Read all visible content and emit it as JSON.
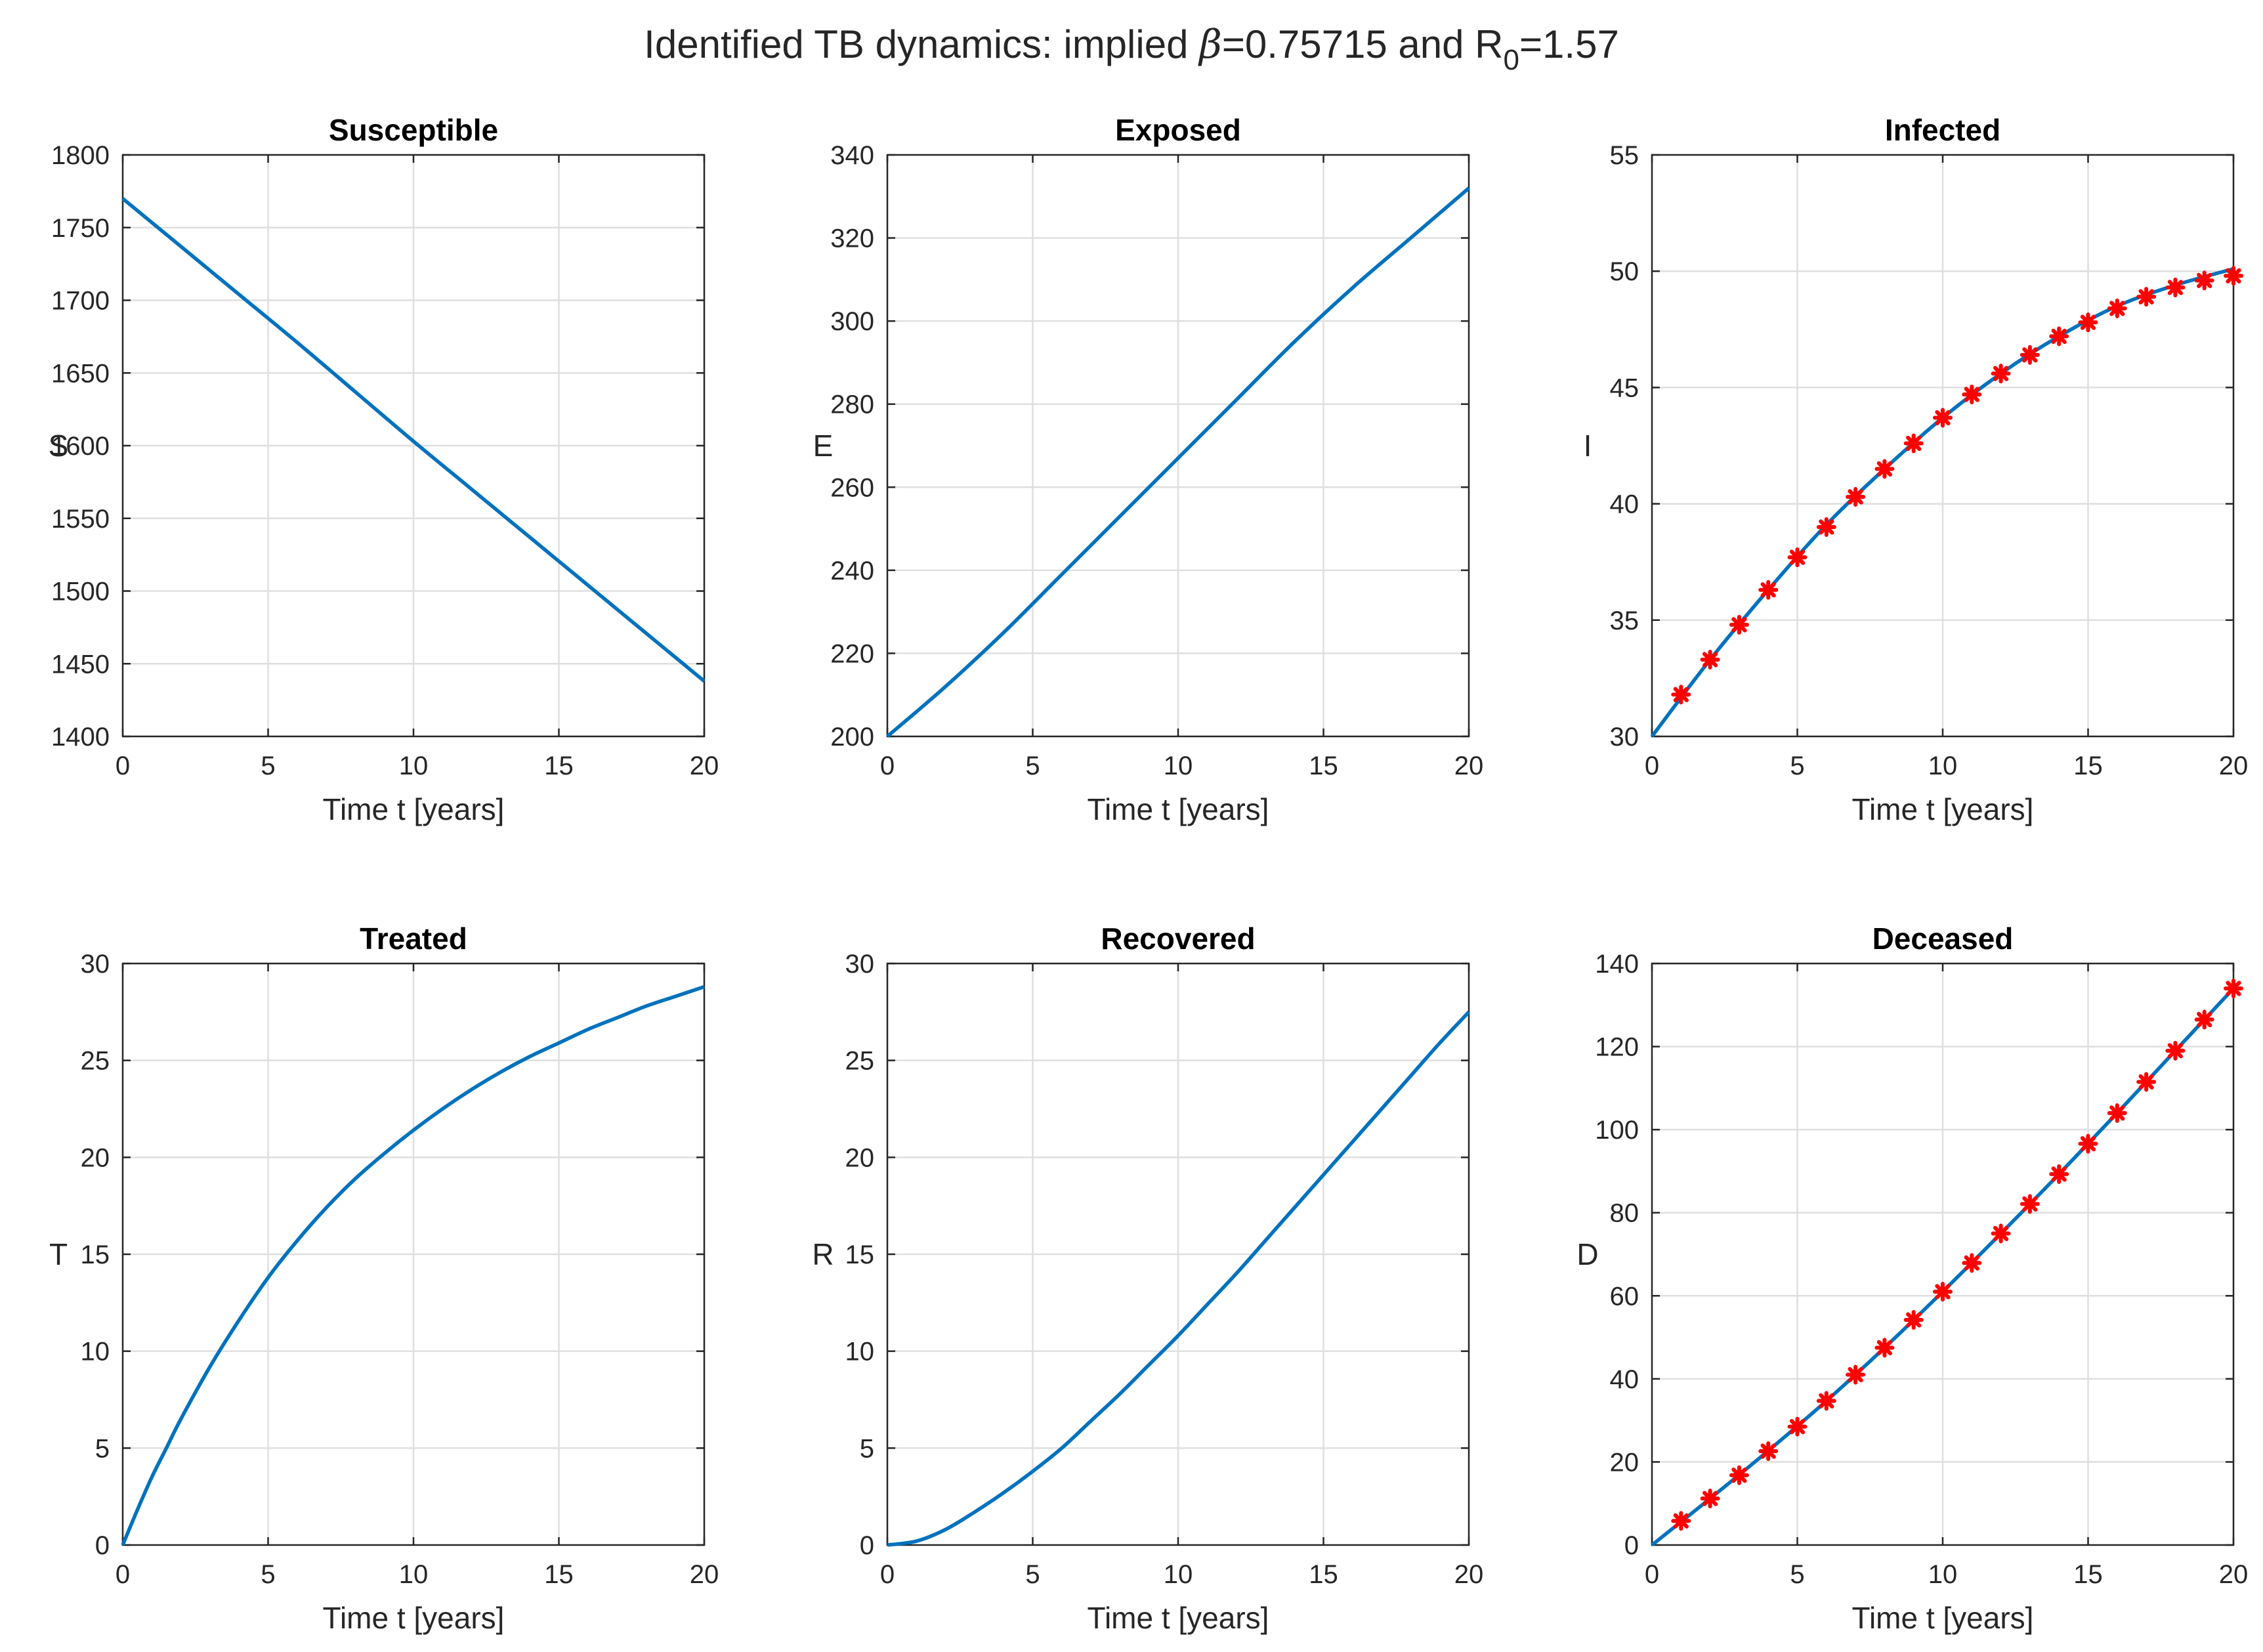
{
  "figure": {
    "title_prefix": "Identified TB dynamics: implied ",
    "beta_symbol": "β",
    "beta_value": "=0.75715 and R",
    "r0_subscript": "0",
    "r0_value": "=1.57"
  },
  "colors": {
    "line": "#0072bd",
    "marker": "#ff0000",
    "grid": "#dfdfdf",
    "axis": "#262626"
  },
  "chart_data": [
    {
      "type": "line",
      "title": "Susceptible",
      "xlabel": "Time t [years]",
      "ylabel": "S",
      "xlim": [
        0,
        20
      ],
      "ylim": [
        1400,
        1800
      ],
      "xticks": [
        0,
        5,
        10,
        15,
        20
      ],
      "yticks": [
        1400,
        1450,
        1500,
        1550,
        1600,
        1650,
        1700,
        1750,
        1800
      ],
      "series": [
        {
          "name": "model",
          "x": [
            0,
            2,
            4,
            6,
            8,
            10,
            12,
            14,
            16,
            18,
            20
          ],
          "y": [
            1770,
            1737,
            1704,
            1671,
            1637,
            1603,
            1570,
            1537,
            1504,
            1471,
            1438
          ]
        }
      ]
    },
    {
      "type": "line",
      "title": "Exposed",
      "xlabel": "Time t [years]",
      "ylabel": "E",
      "xlim": [
        0,
        20
      ],
      "ylim": [
        200,
        340
      ],
      "xticks": [
        0,
        5,
        10,
        15,
        20
      ],
      "yticks": [
        200,
        220,
        240,
        260,
        280,
        300,
        320,
        340
      ],
      "series": [
        {
          "name": "model",
          "x": [
            0,
            2,
            4,
            6,
            8,
            10,
            12,
            14,
            16,
            18,
            20
          ],
          "y": [
            200,
            212,
            225,
            239,
            253,
            267,
            281,
            295,
            308,
            320,
            332
          ]
        }
      ]
    },
    {
      "type": "line",
      "title": "Infected",
      "xlabel": "Time t [years]",
      "ylabel": "I",
      "xlim": [
        0,
        20
      ],
      "ylim": [
        30,
        55
      ],
      "xticks": [
        0,
        5,
        10,
        15,
        20
      ],
      "yticks": [
        30,
        35,
        40,
        45,
        50,
        55
      ],
      "series": [
        {
          "name": "model",
          "x": [
            0,
            2,
            4,
            6,
            8,
            10,
            12,
            14,
            16,
            18,
            20
          ],
          "y": [
            30,
            33.3,
            36.3,
            39.1,
            41.5,
            43.7,
            45.6,
            47.2,
            48.5,
            49.4,
            50.1
          ]
        },
        {
          "name": "data",
          "markers": true,
          "x": [
            1,
            2,
            3,
            4,
            5,
            6,
            7,
            8,
            9,
            10,
            11,
            12,
            13,
            14,
            15,
            16,
            17,
            18,
            19,
            20
          ],
          "y": [
            31.8,
            33.3,
            34.8,
            36.3,
            37.7,
            39.0,
            40.3,
            41.5,
            42.6,
            43.7,
            44.7,
            45.6,
            46.4,
            47.2,
            47.8,
            48.4,
            48.9,
            49.3,
            49.6,
            49.8
          ]
        }
      ]
    },
    {
      "type": "line",
      "title": "Treated",
      "xlabel": "Time t [years]",
      "ylabel": "T",
      "xlim": [
        0,
        20
      ],
      "ylim": [
        0,
        30
      ],
      "xticks": [
        0,
        5,
        10,
        15,
        20
      ],
      "yticks": [
        0,
        5,
        10,
        15,
        20,
        25,
        30
      ],
      "series": [
        {
          "name": "model",
          "x": [
            0,
            0.5,
            1,
            1.5,
            2,
            3,
            4,
            5,
            6,
            7,
            8,
            9,
            10,
            11,
            12,
            13,
            14,
            15,
            16,
            17,
            18,
            19,
            20
          ],
          "y": [
            0,
            1.8,
            3.5,
            5.0,
            6.5,
            9.2,
            11.6,
            13.8,
            15.7,
            17.4,
            18.9,
            20.2,
            21.4,
            22.5,
            23.5,
            24.4,
            25.2,
            25.9,
            26.6,
            27.2,
            27.8,
            28.3,
            28.8
          ]
        }
      ]
    },
    {
      "type": "line",
      "title": "Recovered",
      "xlabel": "Time t [years]",
      "ylabel": "R",
      "xlim": [
        0,
        20
      ],
      "ylim": [
        0,
        30
      ],
      "xticks": [
        0,
        5,
        10,
        15,
        20
      ],
      "yticks": [
        0,
        5,
        10,
        15,
        20,
        25,
        30
      ],
      "series": [
        {
          "name": "model",
          "x": [
            0,
            1,
            2,
            3,
            4,
            5,
            6,
            7,
            8,
            9,
            10,
            11,
            12,
            13,
            14,
            15,
            16,
            17,
            18,
            19,
            20
          ],
          "y": [
            0,
            0.2,
            0.8,
            1.7,
            2.7,
            3.8,
            5.0,
            6.4,
            7.8,
            9.3,
            10.8,
            12.4,
            14.0,
            15.7,
            17.4,
            19.1,
            20.8,
            22.5,
            24.2,
            25.9,
            27.5
          ]
        }
      ]
    },
    {
      "type": "line",
      "title": "Deceased",
      "xlabel": "Time t [years]",
      "ylabel": "D",
      "xlim": [
        0,
        20
      ],
      "ylim": [
        0,
        140
      ],
      "xticks": [
        0,
        5,
        10,
        15,
        20
      ],
      "yticks": [
        0,
        20,
        40,
        60,
        80,
        100,
        120,
        140
      ],
      "series": [
        {
          "name": "model",
          "x": [
            0,
            2,
            4,
            6,
            8,
            10,
            12,
            14,
            16,
            18,
            20
          ],
          "y": [
            0,
            11.2,
            22.7,
            34.7,
            47.5,
            61.0,
            75.0,
            89.3,
            104.0,
            119.0,
            134.0
          ]
        },
        {
          "name": "data",
          "markers": true,
          "x": [
            1,
            2,
            3,
            4,
            5,
            6,
            7,
            8,
            9,
            10,
            11,
            12,
            13,
            14,
            15,
            16,
            17,
            18,
            19,
            20
          ],
          "y": [
            5.8,
            11.2,
            16.8,
            22.6,
            28.5,
            34.7,
            41.0,
            47.5,
            54.2,
            61.0,
            67.9,
            75.0,
            82.1,
            89.3,
            96.6,
            104.0,
            111.5,
            119.0,
            126.5,
            134.0
          ]
        }
      ]
    }
  ]
}
